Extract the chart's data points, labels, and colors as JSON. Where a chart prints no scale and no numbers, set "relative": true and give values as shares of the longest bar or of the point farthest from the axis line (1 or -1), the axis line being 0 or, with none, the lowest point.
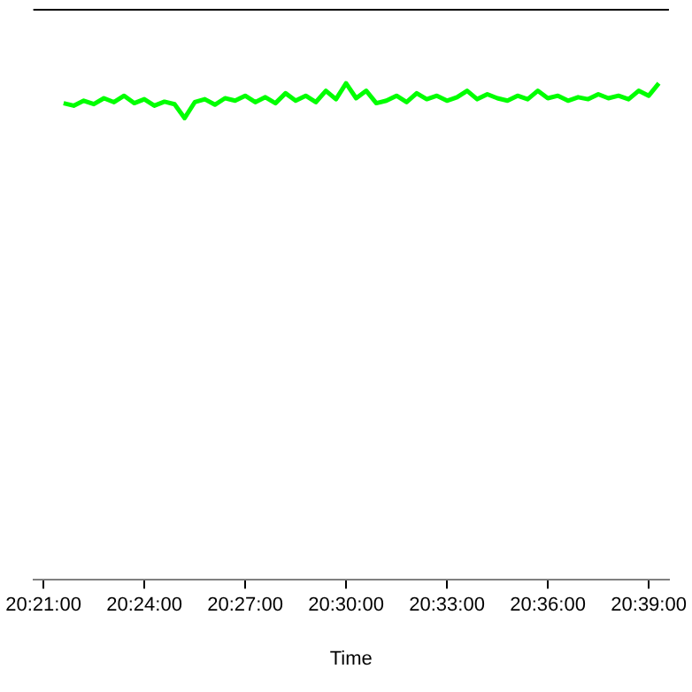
{
  "chart_data": {
    "type": "line",
    "xlabel": "Time",
    "relative": true,
    "grid": false,
    "legend": false,
    "marker": "none",
    "tick_labels": "x",
    "xlim": [
      20.345,
      20.66
    ],
    "xticks": [
      {
        "value": 20.35,
        "label": "20:21:00"
      },
      {
        "value": 20.4,
        "label": "20:24:00"
      },
      {
        "value": 20.45,
        "label": "20:27:00"
      },
      {
        "value": 20.5,
        "label": "20:30:00"
      },
      {
        "value": 20.55,
        "label": "20:33:00"
      },
      {
        "value": 20.6,
        "label": "20:36:00"
      },
      {
        "value": 20.65,
        "label": "20:39:00"
      }
    ],
    "x": [
      20.36,
      20.365,
      20.37,
      20.375,
      20.38,
      20.385,
      20.39,
      20.395,
      20.4,
      20.405,
      20.41,
      20.415,
      20.42,
      20.425,
      20.43,
      20.435,
      20.44,
      20.445,
      20.45,
      20.455,
      20.46,
      20.465,
      20.47,
      20.475,
      20.48,
      20.485,
      20.49,
      20.495,
      20.5,
      20.505,
      20.51,
      20.515,
      20.52,
      20.525,
      20.53,
      20.535,
      20.54,
      20.545,
      20.55,
      20.555,
      20.56,
      20.565,
      20.57,
      20.575,
      20.58,
      20.585,
      20.59,
      20.595,
      20.6,
      20.605,
      20.61,
      20.615,
      20.62,
      20.625,
      20.63,
      20.635,
      20.64,
      20.645,
      20.65,
      20.655
    ],
    "series": [
      {
        "color": "#00ff00",
        "values": [
          0.96,
          0.955,
          0.965,
          0.958,
          0.97,
          0.962,
          0.975,
          0.96,
          0.968,
          0.955,
          0.963,
          0.958,
          0.93,
          0.962,
          0.968,
          0.957,
          0.97,
          0.965,
          0.975,
          0.962,
          0.972,
          0.96,
          0.98,
          0.965,
          0.975,
          0.962,
          0.985,
          0.968,
          1,
          0.97,
          0.985,
          0.96,
          0.965,
          0.975,
          0.962,
          0.98,
          0.968,
          0.975,
          0.965,
          0.972,
          0.985,
          0.968,
          0.978,
          0.97,
          0.965,
          0.975,
          0.968,
          0.985,
          0.97,
          0.975,
          0.965,
          0.972,
          0.968,
          0.978,
          0.97,
          0.975,
          0.968,
          0.985,
          0.975,
          1
        ]
      }
    ]
  }
}
